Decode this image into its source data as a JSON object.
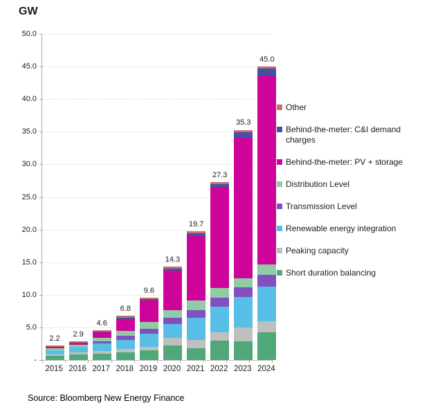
{
  "title": "GW",
  "source": "Source: Bloomberg New Energy Finance",
  "chart_data": {
    "type": "bar",
    "stacked": true,
    "title": "GW",
    "xlabel": "",
    "ylabel": "GW",
    "ylim": [
      0,
      50
    ],
    "grid": "horizontal-dotted",
    "legend_position": "right",
    "y_ticks": [
      "50.0",
      "45.0",
      "40.0",
      "35.0",
      "30.0",
      "25.0",
      "20.0",
      "15.0",
      "10.0",
      "5.0",
      "-"
    ],
    "categories": [
      "2015",
      "2016",
      "2017",
      "2018",
      "2019",
      "2020",
      "2021",
      "2022",
      "2023",
      "2024"
    ],
    "totals": [
      2.2,
      2.9,
      4.6,
      6.8,
      9.6,
      14.3,
      19.7,
      27.3,
      35.3,
      45.0
    ],
    "total_labels": [
      "2.2",
      "2.9",
      "4.6",
      "6.8",
      "9.6",
      "14.3",
      "19.7",
      "27.3",
      "35.3",
      "45.0"
    ],
    "series_bottom_to_top": [
      {
        "name": "Short duration balancing",
        "color": "#50A878",
        "values": [
          0.6,
          0.9,
          1.0,
          1.2,
          1.5,
          2.2,
          1.8,
          3.0,
          2.9,
          4.3
        ]
      },
      {
        "name": "Peaking capacity",
        "color": "#BFBFBF",
        "values": [
          0.25,
          0.3,
          0.4,
          0.5,
          0.5,
          1.2,
          1.3,
          1.3,
          2.1,
          1.6
        ]
      },
      {
        "name": "Renewable energy integration",
        "color": "#57BEE6",
        "values": [
          0.6,
          0.8,
          1.1,
          1.4,
          2.0,
          2.1,
          3.4,
          3.9,
          4.7,
          5.4
        ]
      },
      {
        "name": "Transmission Level",
        "color": "#8150BE",
        "values": [
          0.05,
          0.05,
          0.4,
          0.6,
          0.8,
          1.0,
          1.1,
          1.4,
          1.4,
          1.8
        ]
      },
      {
        "name": "Distribution Level",
        "color": "#8FCBA5",
        "values": [
          0.3,
          0.25,
          0.5,
          0.8,
          1.0,
          1.1,
          1.5,
          1.4,
          1.4,
          1.6
        ]
      },
      {
        "name": "Behind-the-meter: PV + storage",
        "color": "#CE0399",
        "values": [
          0.25,
          0.3,
          0.9,
          1.8,
          3.3,
          6.1,
          9.9,
          15.5,
          21.6,
          28.9
        ]
      },
      {
        "name": "Behind-the-meter: C&I demand charges",
        "color": "#4053A4",
        "values": [
          0.0,
          0.05,
          0.1,
          0.2,
          0.25,
          0.3,
          0.45,
          0.5,
          0.85,
          1.1
        ]
      },
      {
        "name": "Other",
        "color": "#CE6B66",
        "values": [
          0.15,
          0.25,
          0.2,
          0.3,
          0.25,
          0.3,
          0.25,
          0.3,
          0.35,
          0.3
        ]
      }
    ],
    "legend_top_to_bottom": [
      "Other",
      "Behind-the-meter: C&I demand charges",
      "Behind-the-meter: PV + storage",
      "Distribution Level",
      "Transmission Level",
      "Renewable energy integration",
      "Peaking capacity",
      "Short duration balancing"
    ]
  }
}
